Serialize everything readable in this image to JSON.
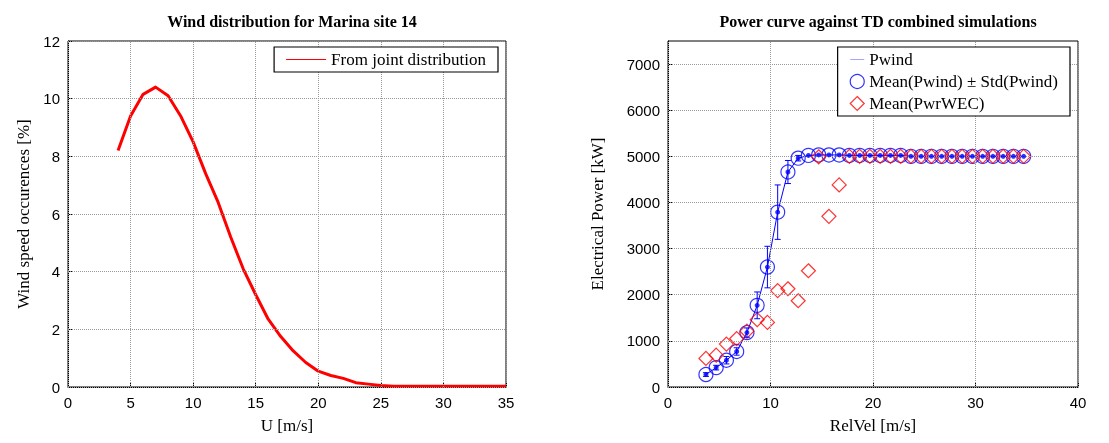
{
  "chart_data": [
    {
      "type": "line",
      "title": "Wind distribution for Marina site 14",
      "xlabel": "U [m/s]",
      "ylabel": "Wind speed occurences [%]",
      "x": [
        4,
        5,
        6,
        7,
        8,
        9,
        10,
        11,
        12,
        13,
        14,
        15,
        16,
        17,
        18,
        19,
        20,
        21,
        22,
        23,
        24,
        25,
        26,
        27,
        28,
        29,
        30,
        31,
        32,
        33,
        34,
        35
      ],
      "series": [
        {
          "name": "From joint distribution",
          "color": "#ff0000",
          "values": [
            8.2,
            9.4,
            10.15,
            10.4,
            10.1,
            9.4,
            8.5,
            7.4,
            6.4,
            5.2,
            4.1,
            3.2,
            2.35,
            1.75,
            1.25,
            0.85,
            0.55,
            0.4,
            0.3,
            0.15,
            0.1,
            0.05,
            0.03,
            0.03,
            0.03,
            0.03,
            0.03,
            0.03,
            0.03,
            0.03,
            0.03,
            0.03
          ]
        }
      ],
      "xlim": [
        0,
        35
      ],
      "xticks": [
        0,
        5,
        10,
        15,
        20,
        25,
        30,
        35
      ],
      "ylim": [
        0,
        12
      ],
      "yticks": [
        0,
        2,
        4,
        6,
        8,
        10,
        12
      ],
      "grid": true,
      "legend": "top right",
      "marker": "none",
      "line_style": "solid"
    },
    {
      "type": "scatter",
      "title": "Power curve against TD combined simulations",
      "xlabel": "RelVel [m/s]",
      "ylabel": "Electrical Power [kW]",
      "x": [
        3.7,
        4.7,
        5.7,
        6.7,
        7.7,
        8.7,
        9.7,
        10.7,
        11.7,
        12.7,
        13.7,
        14.7,
        15.7,
        16.7,
        17.7,
        18.7,
        19.7,
        20.7,
        21.7,
        22.7,
        23.7,
        24.7,
        25.7,
        26.7,
        27.7,
        28.7,
        29.7,
        30.7,
        31.7,
        32.7,
        33.7,
        34.7
      ],
      "series": [
        {
          "name": "Pwind",
          "type": "line",
          "marker": "none",
          "color": "#0000ff",
          "values": [
            270,
            420,
            580,
            770,
            1180,
            1770,
            2600,
            3790,
            4660,
            4960,
            5020,
            5030,
            5030,
            5030,
            5020,
            5020,
            5020,
            5020,
            5020,
            5020,
            5000,
            5000,
            5000,
            5000,
            5000,
            5000,
            5000,
            5000,
            5000,
            5000,
            5000,
            5000
          ]
        },
        {
          "name": "Mean(Pwind) ± Std(Pwind)",
          "type": "scatter",
          "marker": "circle",
          "color": "#0000ff",
          "values": [
            270,
            420,
            580,
            770,
            1180,
            1770,
            2600,
            3790,
            4660,
            4960,
            5020,
            5030,
            5030,
            5030,
            5020,
            5020,
            5020,
            5020,
            5020,
            5020,
            5000,
            5000,
            5000,
            5000,
            5000,
            5000,
            5000,
            5000,
            5000,
            5000,
            5000,
            5000
          ],
          "errors": [
            40,
            50,
            80,
            80,
            100,
            290,
            450,
            590,
            250,
            60,
            null,
            null,
            null,
            null,
            null,
            null,
            null,
            null,
            null,
            null,
            null,
            null,
            null,
            null,
            null,
            null,
            null,
            null,
            null,
            null,
            null,
            null
          ]
        },
        {
          "name": "Mean(PwrWEC)",
          "type": "scatter",
          "marker": "diamond",
          "color": "#ff0000",
          "values": [
            620,
            690,
            930,
            1050,
            1210,
            1460,
            1400,
            2090,
            2130,
            1870,
            2520,
            4990,
            3700,
            4380,
            5000,
            5000,
            5000,
            5000,
            5000,
            5000,
            5000,
            5000,
            5000,
            5000,
            5000,
            5000,
            5000,
            5000,
            5000,
            5000,
            5000,
            5000
          ]
        }
      ],
      "xlim": [
        0,
        40
      ],
      "xticks": [
        0,
        10,
        20,
        30,
        40
      ],
      "ylim": [
        0,
        7500
      ],
      "yticks": [
        0,
        1000,
        2000,
        3000,
        4000,
        5000,
        6000,
        7000
      ],
      "grid": true,
      "legend": "top right"
    }
  ]
}
